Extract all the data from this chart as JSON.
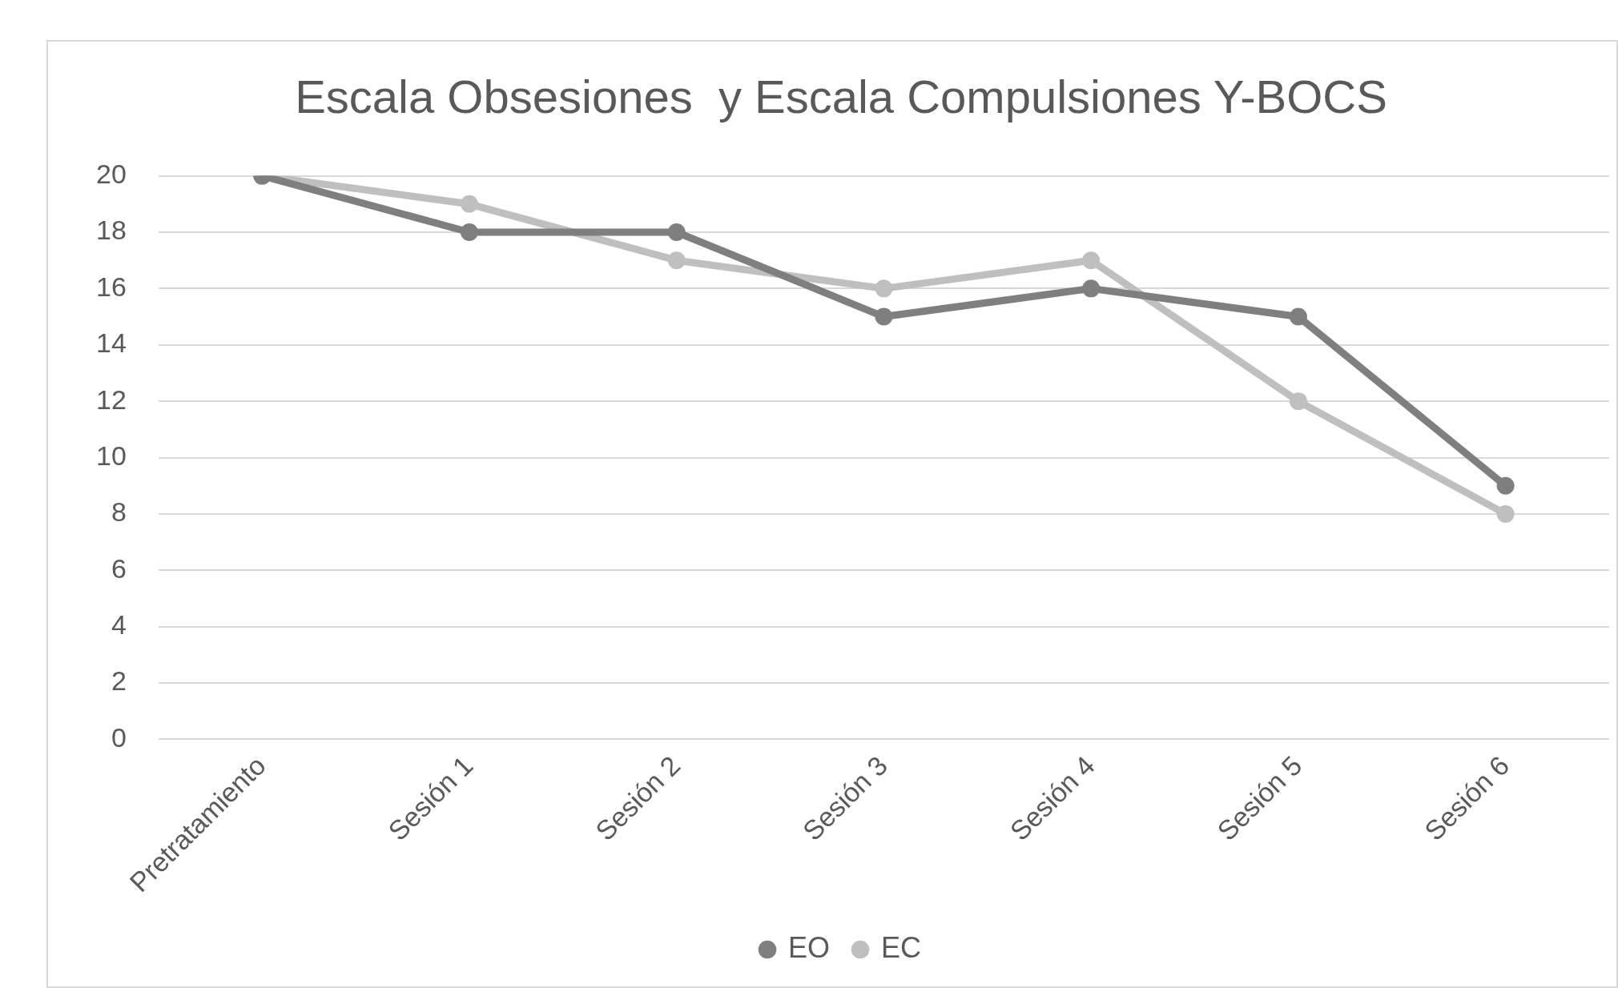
{
  "chart_data": {
    "type": "line",
    "title": "Escala Obsesiones  y Escala Compulsiones Y-BOCS",
    "categories": [
      "Pretratamiento",
      "Sesión 1",
      "Sesión 2",
      "Sesión 3",
      "Sesión 4",
      "Sesión 5",
      "Sesión 6"
    ],
    "series": [
      {
        "name": "EO",
        "color": "#7f7f7f",
        "values": [
          20,
          18,
          18,
          15,
          16,
          15,
          9
        ]
      },
      {
        "name": "EC",
        "color": "#bfbfbf",
        "values": [
          20,
          19,
          17,
          16,
          17,
          12,
          8
        ]
      }
    ],
    "ylim": [
      0,
      20
    ],
    "yticks": [
      0,
      2,
      4,
      6,
      8,
      10,
      12,
      14,
      16,
      18,
      20
    ],
    "grid": "y",
    "legend": "bottom",
    "marker": "circle",
    "line_style": "solid"
  }
}
